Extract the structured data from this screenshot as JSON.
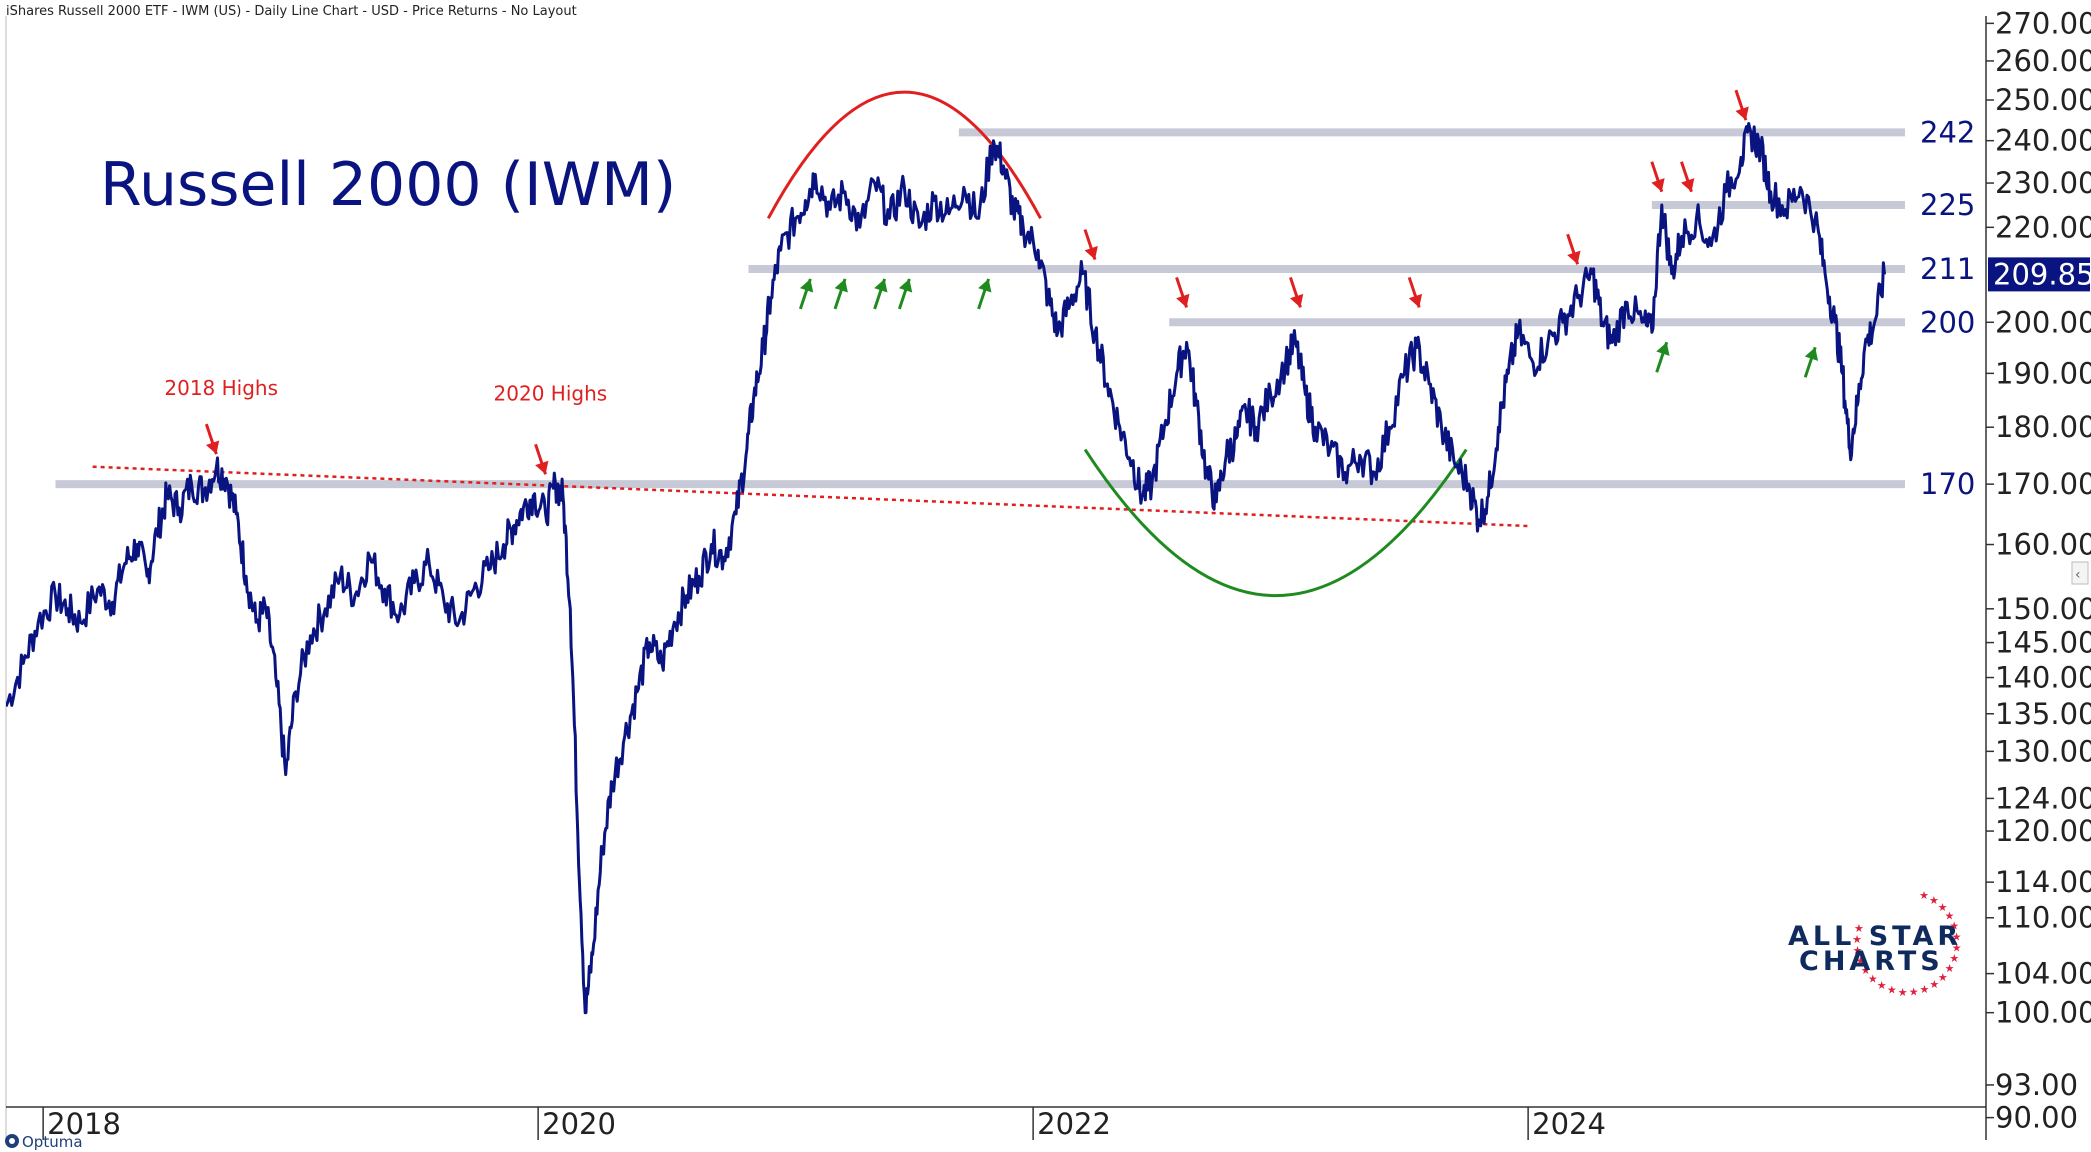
{
  "header": {
    "title_line": "iShares Russell 2000 ETF - IWM (US) - Daily Line Chart - USD - Price Returns - No Layout"
  },
  "chart_title": "Russell 2000 (IWM)",
  "brand": {
    "line1": "ALL STAR",
    "line2": "CHARTS",
    "footer": "Optuma"
  },
  "colors": {
    "price_line": "#0a1480",
    "support_band": "#c7cad6",
    "trendline": "#e02020",
    "arrow_red": "#e02020",
    "arrow_green": "#1f8a1f",
    "dome": "#e02020",
    "bowl": "#1f8a1f",
    "current_tag": "#0a1480"
  },
  "chart_data": {
    "type": "line",
    "title": "Russell 2000 (IWM)",
    "y_scale": "log",
    "ylim": [
      88,
      272
    ],
    "xlim": [
      2017.85,
      2025.85
    ],
    "x_ticks": [
      {
        "value": 2018,
        "label": "2018"
      },
      {
        "value": 2020,
        "label": "2020"
      },
      {
        "value": 2022,
        "label": "2022"
      },
      {
        "value": 2024,
        "label": "2024"
      }
    ],
    "y_ticks": [
      {
        "value": 270,
        "label": "270.00"
      },
      {
        "value": 260,
        "label": "260.00"
      },
      {
        "value": 250,
        "label": "250.00"
      },
      {
        "value": 240,
        "label": "240.00"
      },
      {
        "value": 230,
        "label": "230.00"
      },
      {
        "value": 220,
        "label": "220.00"
      },
      {
        "value": 200,
        "label": "200.00"
      },
      {
        "value": 190,
        "label": "190.00"
      },
      {
        "value": 180,
        "label": "180.00"
      },
      {
        "value": 170,
        "label": "170.00"
      },
      {
        "value": 160,
        "label": "160.00"
      },
      {
        "value": 150,
        "label": "150.00"
      },
      {
        "value": 145,
        "label": "145.00"
      },
      {
        "value": 140,
        "label": "140.00"
      },
      {
        "value": 135,
        "label": "135.00"
      },
      {
        "value": 130,
        "label": "130.00"
      },
      {
        "value": 124,
        "label": "124.00"
      },
      {
        "value": 120,
        "label": "120.00"
      },
      {
        "value": 114,
        "label": "114.00"
      },
      {
        "value": 110,
        "label": "110.00"
      },
      {
        "value": 104,
        "label": "104.00"
      },
      {
        "value": 100,
        "label": "100.00"
      },
      {
        "value": 93,
        "label": "93.00"
      },
      {
        "value": 90,
        "label": "90.00"
      }
    ],
    "current_value": {
      "value": 209.85,
      "label": "209.85"
    },
    "series": [
      {
        "values": [
          [
            2017.85,
            136
          ],
          [
            2017.92,
            142
          ],
          [
            2017.98,
            148
          ],
          [
            2018.05,
            152
          ],
          [
            2018.1,
            150
          ],
          [
            2018.15,
            148
          ],
          [
            2018.22,
            153
          ],
          [
            2018.28,
            151
          ],
          [
            2018.33,
            157
          ],
          [
            2018.38,
            160
          ],
          [
            2018.42,
            155
          ],
          [
            2018.46,
            162
          ],
          [
            2018.5,
            168
          ],
          [
            2018.55,
            166
          ],
          [
            2018.6,
            170
          ],
          [
            2018.65,
            169
          ],
          [
            2018.7,
            173
          ],
          [
            2018.74,
            171
          ],
          [
            2018.78,
            165
          ],
          [
            2018.82,
            155
          ],
          [
            2018.86,
            148
          ],
          [
            2018.9,
            150
          ],
          [
            2018.94,
            140
          ],
          [
            2018.98,
            127
          ],
          [
            2019.02,
            138
          ],
          [
            2019.08,
            146
          ],
          [
            2019.14,
            150
          ],
          [
            2019.2,
            155
          ],
          [
            2019.26,
            152
          ],
          [
            2019.32,
            158
          ],
          [
            2019.38,
            153
          ],
          [
            2019.44,
            149
          ],
          [
            2019.5,
            154
          ],
          [
            2019.56,
            157
          ],
          [
            2019.62,
            151
          ],
          [
            2019.68,
            148
          ],
          [
            2019.74,
            153
          ],
          [
            2019.8,
            156
          ],
          [
            2019.86,
            160
          ],
          [
            2019.9,
            163
          ],
          [
            2019.94,
            166
          ],
          [
            2019.98,
            168
          ],
          [
            2020.03,
            165
          ],
          [
            2020.07,
            170
          ],
          [
            2020.1,
            168
          ],
          [
            2020.13,
            150
          ],
          [
            2020.16,
            120
          ],
          [
            2020.19,
            100
          ],
          [
            2020.22,
            106
          ],
          [
            2020.26,
            118
          ],
          [
            2020.3,
            126
          ],
          [
            2020.35,
            132
          ],
          [
            2020.4,
            138
          ],
          [
            2020.45,
            145
          ],
          [
            2020.5,
            142
          ],
          [
            2020.55,
            148
          ],
          [
            2020.6,
            152
          ],
          [
            2020.65,
            155
          ],
          [
            2020.7,
            160
          ],
          [
            2020.75,
            158
          ],
          [
            2020.8,
            165
          ],
          [
            2020.84,
            175
          ],
          [
            2020.87,
            185
          ],
          [
            2020.91,
            195
          ],
          [
            2020.94,
            205
          ],
          [
            2020.98,
            215
          ],
          [
            2021.04,
            222
          ],
          [
            2021.08,
            226
          ],
          [
            2021.12,
            232
          ],
          [
            2021.18,
            224
          ],
          [
            2021.24,
            228
          ],
          [
            2021.3,
            220
          ],
          [
            2021.36,
            230
          ],
          [
            2021.42,
            222
          ],
          [
            2021.48,
            229
          ],
          [
            2021.54,
            220
          ],
          [
            2021.6,
            226
          ],
          [
            2021.66,
            223
          ],
          [
            2021.72,
            229
          ],
          [
            2021.78,
            222
          ],
          [
            2021.84,
            240
          ],
          [
            2021.88,
            234
          ],
          [
            2021.92,
            224
          ],
          [
            2021.96,
            220
          ],
          [
            2022.02,
            215
          ],
          [
            2022.06,
            205
          ],
          [
            2022.1,
            198
          ],
          [
            2022.15,
            204
          ],
          [
            2022.2,
            210
          ],
          [
            2022.25,
            198
          ],
          [
            2022.3,
            188
          ],
          [
            2022.35,
            180
          ],
          [
            2022.4,
            174
          ],
          [
            2022.44,
            168
          ],
          [
            2022.48,
            170
          ],
          [
            2022.53,
            180
          ],
          [
            2022.58,
            190
          ],
          [
            2022.62,
            196
          ],
          [
            2022.66,
            184
          ],
          [
            2022.7,
            172
          ],
          [
            2022.74,
            167
          ],
          [
            2022.78,
            175
          ],
          [
            2022.82,
            178
          ],
          [
            2022.86,
            183
          ],
          [
            2022.9,
            180
          ],
          [
            2022.96,
            186
          ],
          [
            2023.02,
            192
          ],
          [
            2023.06,
            196
          ],
          [
            2023.1,
            186
          ],
          [
            2023.14,
            180
          ],
          [
            2023.2,
            176
          ],
          [
            2023.26,
            172
          ],
          [
            2023.32,
            175
          ],
          [
            2023.38,
            172
          ],
          [
            2023.44,
            180
          ],
          [
            2023.5,
            190
          ],
          [
            2023.55,
            195
          ],
          [
            2023.6,
            188
          ],
          [
            2023.65,
            180
          ],
          [
            2023.7,
            174
          ],
          [
            2023.76,
            170
          ],
          [
            2023.8,
            164
          ],
          [
            2023.84,
            168
          ],
          [
            2023.88,
            180
          ],
          [
            2023.92,
            190
          ],
          [
            2023.96,
            198
          ],
          [
            2024.02,
            192
          ],
          [
            2024.08,
            196
          ],
          [
            2024.14,
            200
          ],
          [
            2024.2,
            205
          ],
          [
            2024.26,
            210
          ],
          [
            2024.3,
            200
          ],
          [
            2024.34,
            196
          ],
          [
            2024.4,
            204
          ],
          [
            2024.46,
            200
          ],
          [
            2024.5,
            198
          ],
          [
            2024.54,
            225
          ],
          [
            2024.58,
            210
          ],
          [
            2024.62,
            218
          ],
          [
            2024.68,
            222
          ],
          [
            2024.74,
            216
          ],
          [
            2024.8,
            228
          ],
          [
            2024.86,
            236
          ],
          [
            2024.9,
            242
          ],
          [
            2024.94,
            238
          ],
          [
            2024.98,
            228
          ],
          [
            2025.04,
            224
          ],
          [
            2025.1,
            229
          ],
          [
            2025.16,
            222
          ],
          [
            2025.2,
            210
          ],
          [
            2025.24,
            200
          ],
          [
            2025.27,
            190
          ],
          [
            2025.3,
            176
          ],
          [
            2025.33,
            184
          ],
          [
            2025.36,
            195
          ],
          [
            2025.4,
            200
          ],
          [
            2025.44,
            209.85
          ]
        ]
      }
    ],
    "support_levels": [
      {
        "value": 242,
        "label": "242",
        "x_from": 2021.7,
        "x_to": 2025.85
      },
      {
        "value": 225,
        "label": "225",
        "x_from": 2024.5,
        "x_to": 2025.85
      },
      {
        "value": 211,
        "label": "211",
        "x_from": 2020.85,
        "x_to": 2025.85
      },
      {
        "value": 200,
        "label": "200",
        "x_from": 2022.55,
        "x_to": 2025.85
      },
      {
        "value": 170,
        "label": "170",
        "x_from": 2018.05,
        "x_to": 2025.85
      }
    ],
    "trendline": {
      "from": [
        2018.2,
        173
      ],
      "to": [
        2024.0,
        163
      ]
    },
    "annotations": [
      {
        "text": "2018 Highs",
        "x": 2018.7,
        "y": 187,
        "arrow_to": [
          2018.7,
          174.5
        ]
      },
      {
        "text": "2020 Highs",
        "x": 2020.03,
        "y": 186,
        "arrow_to": [
          2020.03,
          171
        ]
      }
    ],
    "red_arrows": [
      [
        2022.25,
        213
      ],
      [
        2022.62,
        203
      ],
      [
        2023.08,
        203
      ],
      [
        2023.56,
        203
      ],
      [
        2024.2,
        212
      ],
      [
        2024.54,
        228
      ],
      [
        2024.66,
        228
      ],
      [
        2024.88,
        245
      ]
    ],
    "green_arrows": [
      [
        2021.1,
        211
      ],
      [
        2021.24,
        211
      ],
      [
        2021.4,
        211
      ],
      [
        2021.5,
        211
      ],
      [
        2021.82,
        211
      ],
      [
        2024.56,
        198
      ],
      [
        2025.16,
        197
      ]
    ],
    "dome": {
      "x_center": 2021.48,
      "x_radius": 0.55,
      "y_top": 252,
      "y_base": 222
    },
    "bowl": {
      "x_center": 2022.98,
      "x_radius": 0.77,
      "y_bottom": 152,
      "y_base": 176
    }
  }
}
